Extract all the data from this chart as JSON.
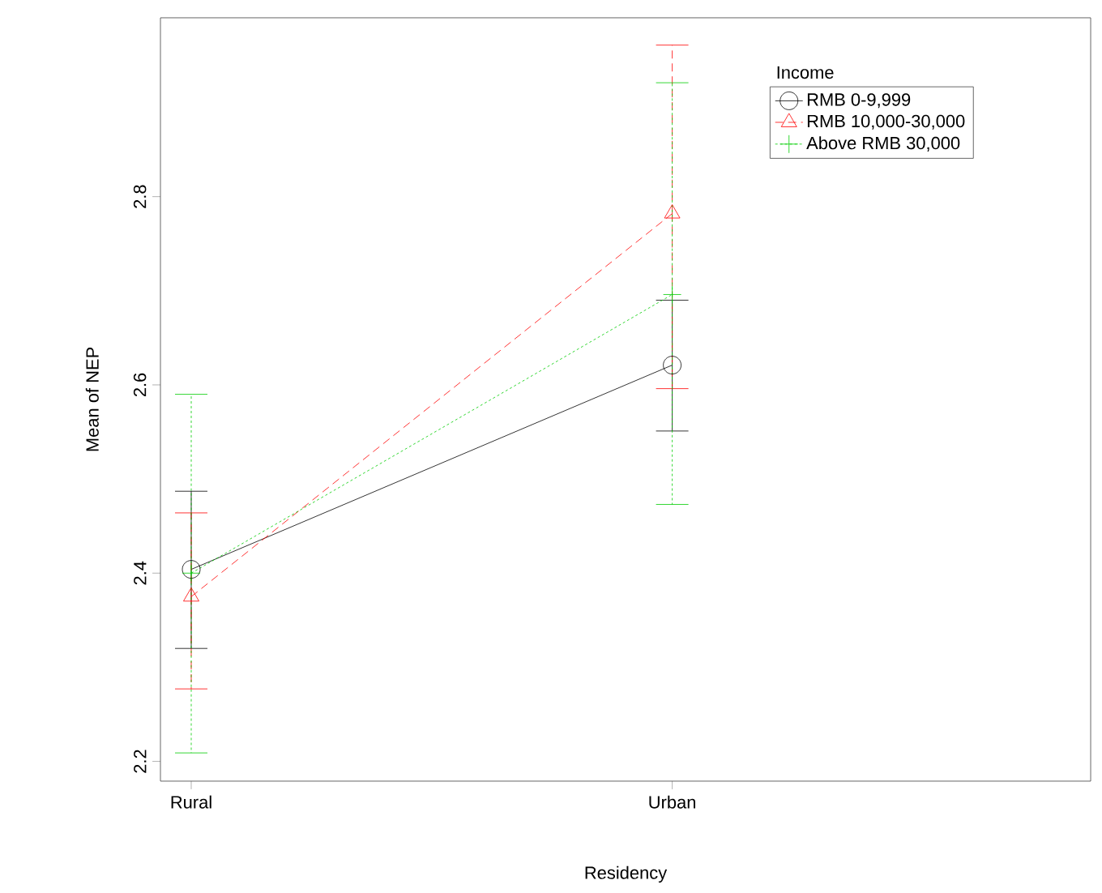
{
  "chart_data": {
    "type": "line",
    "xlabel": "Residency",
    "ylabel": "Mean of NEP",
    "legend_title": "Income",
    "legend": "top right",
    "categories": [
      "Rural",
      "Urban"
    ],
    "ylim": [
      2.179,
      2.99
    ],
    "yticks": [
      2.2,
      2.4,
      2.6,
      2.8
    ],
    "grid": false,
    "series": [
      {
        "name": "RMB 0-9,999",
        "color": "#000000",
        "marker": "circle",
        "line_style": "solid",
        "values": [
          2.404,
          2.621
        ],
        "errors": [
          [
            2.32,
            2.487
          ],
          [
            2.551,
            2.69
          ]
        ]
      },
      {
        "name": "RMB 10,000-30,000",
        "color": "#ff0000",
        "marker": "triangle",
        "line_style": "dashed",
        "values": [
          2.375,
          2.782
        ],
        "errors": [
          [
            2.277,
            2.464
          ],
          [
            2.596,
            2.961
          ]
        ]
      },
      {
        "name": "Above RMB 30,000",
        "color": "#00cd00",
        "marker": "cross",
        "line_style": "dotted",
        "values": [
          2.4,
          2.696
        ],
        "errors": [
          [
            2.209,
            2.59
          ],
          [
            2.473,
            2.921
          ]
        ]
      }
    ]
  }
}
